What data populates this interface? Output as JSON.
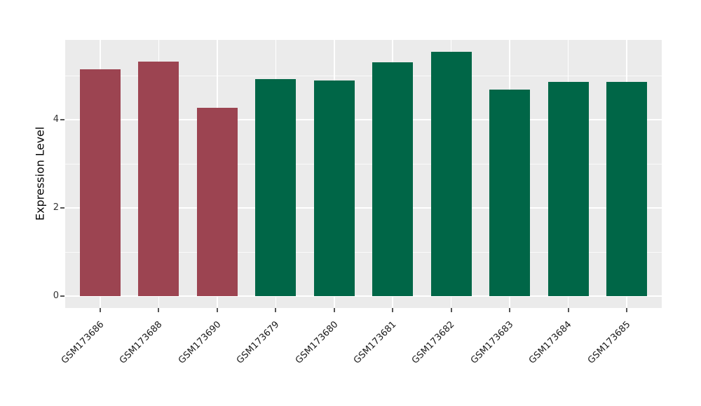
{
  "chart_data": {
    "type": "bar",
    "title": "",
    "xlabel": "",
    "ylabel": "Expression Level",
    "categories": [
      "GSM173686",
      "GSM173688",
      "GSM173690",
      "GSM173679",
      "GSM173680",
      "GSM173681",
      "GSM173682",
      "GSM173683",
      "GSM173684",
      "GSM173685"
    ],
    "values": [
      5.14,
      5.32,
      4.27,
      4.92,
      4.89,
      5.3,
      5.54,
      4.68,
      4.86,
      4.85
    ],
    "bar_colors": [
      "#9c4451",
      "#9c4451",
      "#9c4451",
      "#006647",
      "#006647",
      "#006647",
      "#006647",
      "#006647",
      "#006647",
      "#006647"
    ],
    "ylim": [
      0,
      5.81
    ],
    "yticks": [
      0,
      2,
      4
    ],
    "yticks_minor": [
      1,
      3,
      5
    ],
    "grid": "on",
    "legend": "none",
    "x_tick_rotation_deg": 45,
    "panel_background": "#ebebeb",
    "gridline_color": "#ffffff",
    "accent_red": "#9c4451",
    "accent_green": "#006647"
  }
}
